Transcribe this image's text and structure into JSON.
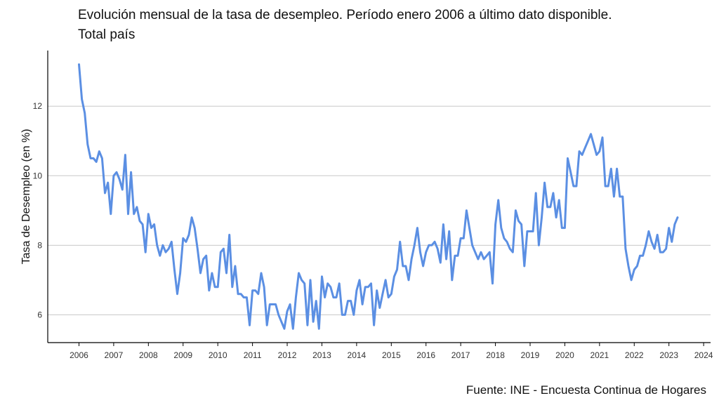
{
  "chart_data": {
    "type": "line",
    "title": "Evolución mensual de la tasa de desempleo. Período enero 2006 a último dato disponible.",
    "subtitle": "Total país",
    "xlabel": "",
    "ylabel": "Tasa de Desempleo (en %)",
    "source": "Fuente: INE - Encuesta Continua de Hogares",
    "xlim": [
      2005.1,
      2024.2
    ],
    "ylim": [
      5.2,
      13.6
    ],
    "x_ticks": [
      "2006",
      "2007",
      "2008",
      "2009",
      "2010",
      "2011",
      "2012",
      "2013",
      "2014",
      "2015",
      "2016",
      "2017",
      "2018",
      "2019",
      "2020",
      "2021",
      "2022",
      "2023",
      "2024"
    ],
    "y_ticks": [
      "6",
      "8",
      "10",
      "12"
    ],
    "grid": "horizontal",
    "line_color": "#5b8fe3",
    "series": [
      {
        "x": [
          "2006-01",
          "2006-02",
          "2006-03",
          "2006-04",
          "2006-05",
          "2006-06",
          "2006-07",
          "2006-08",
          "2006-09",
          "2006-10",
          "2006-11",
          "2006-12",
          "2007-01",
          "2007-02",
          "2007-03",
          "2007-04",
          "2007-05",
          "2007-06",
          "2007-07",
          "2007-08",
          "2007-09",
          "2007-10",
          "2007-11",
          "2007-12",
          "2008-01",
          "2008-02",
          "2008-03",
          "2008-04",
          "2008-05",
          "2008-06",
          "2008-07",
          "2008-08",
          "2008-09",
          "2008-10",
          "2008-11",
          "2008-12",
          "2009-01",
          "2009-02",
          "2009-03",
          "2009-04",
          "2009-05",
          "2009-06",
          "2009-07",
          "2009-08",
          "2009-09",
          "2009-10",
          "2009-11",
          "2009-12",
          "2010-01",
          "2010-02",
          "2010-03",
          "2010-04",
          "2010-05",
          "2010-06",
          "2010-07",
          "2010-08",
          "2010-09",
          "2010-10",
          "2010-11",
          "2010-12",
          "2011-01",
          "2011-02",
          "2011-03",
          "2011-04",
          "2011-05",
          "2011-06",
          "2011-07",
          "2011-08",
          "2011-09",
          "2011-10",
          "2011-11",
          "2011-12",
          "2012-01",
          "2012-02",
          "2012-03",
          "2012-04",
          "2012-05",
          "2012-06",
          "2012-07",
          "2012-08",
          "2012-09",
          "2012-10",
          "2012-11",
          "2012-12",
          "2013-01",
          "2013-02",
          "2013-03",
          "2013-04",
          "2013-05",
          "2013-06",
          "2013-07",
          "2013-08",
          "2013-09",
          "2013-10",
          "2013-11",
          "2013-12",
          "2014-01",
          "2014-02",
          "2014-03",
          "2014-04",
          "2014-05",
          "2014-06",
          "2014-07",
          "2014-08",
          "2014-09",
          "2014-10",
          "2014-11",
          "2014-12",
          "2015-01",
          "2015-02",
          "2015-03",
          "2015-04",
          "2015-05",
          "2015-06",
          "2015-07",
          "2015-08",
          "2015-09",
          "2015-10",
          "2015-11",
          "2015-12",
          "2016-01",
          "2016-02",
          "2016-03",
          "2016-04",
          "2016-05",
          "2016-06",
          "2016-07",
          "2016-08",
          "2016-09",
          "2016-10",
          "2016-11",
          "2016-12",
          "2017-01",
          "2017-02",
          "2017-03",
          "2017-04",
          "2017-05",
          "2017-06",
          "2017-07",
          "2017-08",
          "2017-09",
          "2017-10",
          "2017-11",
          "2017-12",
          "2018-01",
          "2018-02",
          "2018-03",
          "2018-04",
          "2018-05",
          "2018-06",
          "2018-07",
          "2018-08",
          "2018-09",
          "2018-10",
          "2018-11",
          "2018-12",
          "2019-01",
          "2019-02",
          "2019-03",
          "2019-04",
          "2019-05",
          "2019-06",
          "2019-07",
          "2019-08",
          "2019-09",
          "2019-10",
          "2019-11",
          "2019-12",
          "2020-01",
          "2020-02",
          "2020-03",
          "2020-04",
          "2020-05",
          "2020-06",
          "2020-07",
          "2020-08",
          "2020-09",
          "2020-10",
          "2020-11",
          "2020-12",
          "2021-01",
          "2021-02",
          "2021-03",
          "2021-04",
          "2021-05",
          "2021-06",
          "2021-07",
          "2021-08",
          "2021-09",
          "2021-10",
          "2021-11",
          "2021-12",
          "2022-01",
          "2022-02",
          "2022-03",
          "2022-04",
          "2022-05",
          "2022-06",
          "2022-07",
          "2022-08",
          "2022-09",
          "2022-10",
          "2022-11",
          "2022-12",
          "2023-01",
          "2023-02",
          "2023-03",
          "2023-04"
        ],
        "values": [
          13.2,
          12.2,
          11.8,
          10.9,
          10.5,
          10.5,
          10.4,
          10.7,
          10.5,
          9.5,
          9.8,
          8.9,
          10.0,
          10.1,
          9.9,
          9.6,
          10.6,
          8.9,
          10.1,
          8.9,
          9.1,
          8.7,
          8.6,
          7.8,
          8.9,
          8.5,
          8.6,
          8.0,
          7.7,
          8.0,
          7.8,
          7.9,
          8.1,
          7.3,
          6.6,
          7.2,
          8.2,
          8.1,
          8.3,
          8.8,
          8.5,
          7.9,
          7.2,
          7.6,
          7.7,
          6.7,
          7.2,
          6.8,
          6.8,
          7.8,
          7.9,
          7.2,
          8.3,
          6.8,
          7.4,
          6.6,
          6.6,
          6.5,
          6.5,
          5.7,
          6.7,
          6.7,
          6.6,
          7.2,
          6.8,
          5.7,
          6.3,
          6.3,
          6.3,
          6.0,
          5.8,
          5.6,
          6.1,
          6.3,
          5.6,
          6.5,
          7.2,
          7.0,
          6.9,
          5.7,
          7.0,
          5.8,
          6.4,
          5.6,
          7.1,
          6.5,
          6.9,
          6.8,
          6.5,
          6.5,
          6.9,
          6.0,
          6.0,
          6.4,
          6.4,
          6.0,
          6.7,
          7.0,
          6.3,
          6.8,
          6.8,
          6.9,
          5.7,
          6.7,
          6.2,
          6.6,
          7.0,
          6.5,
          6.6,
          7.1,
          7.3,
          8.1,
          7.4,
          7.4,
          7.0,
          7.6,
          8.0,
          8.5,
          7.8,
          7.4,
          7.8,
          8.0,
          8.0,
          8.1,
          7.9,
          7.5,
          8.6,
          7.6,
          8.4,
          7.0,
          7.7,
          7.7,
          8.2,
          8.2,
          9.0,
          8.5,
          8.0,
          7.8,
          7.6,
          7.8,
          7.6,
          7.7,
          7.8,
          6.9,
          8.6,
          9.3,
          8.5,
          8.2,
          8.1,
          7.9,
          7.8,
          9.0,
          8.7,
          8.6,
          7.4,
          8.4,
          8.4,
          8.4,
          9.5,
          8.0,
          8.8,
          9.8,
          9.1,
          9.1,
          9.5,
          8.8,
          9.3,
          8.5,
          8.5,
          10.5,
          10.1,
          9.7,
          9.7,
          10.7,
          10.6,
          10.8,
          11.0,
          11.2,
          10.9,
          10.6,
          10.7,
          11.1,
          9.7,
          9.7,
          10.2,
          9.4,
          10.2,
          9.4,
          9.4,
          7.9,
          7.4,
          7.0,
          7.3,
          7.4,
          7.7,
          7.7,
          8.0,
          8.4,
          8.1,
          7.9,
          8.3,
          7.8,
          7.8,
          7.9,
          8.5,
          8.1,
          8.6,
          8.8
        ]
      }
    ]
  }
}
